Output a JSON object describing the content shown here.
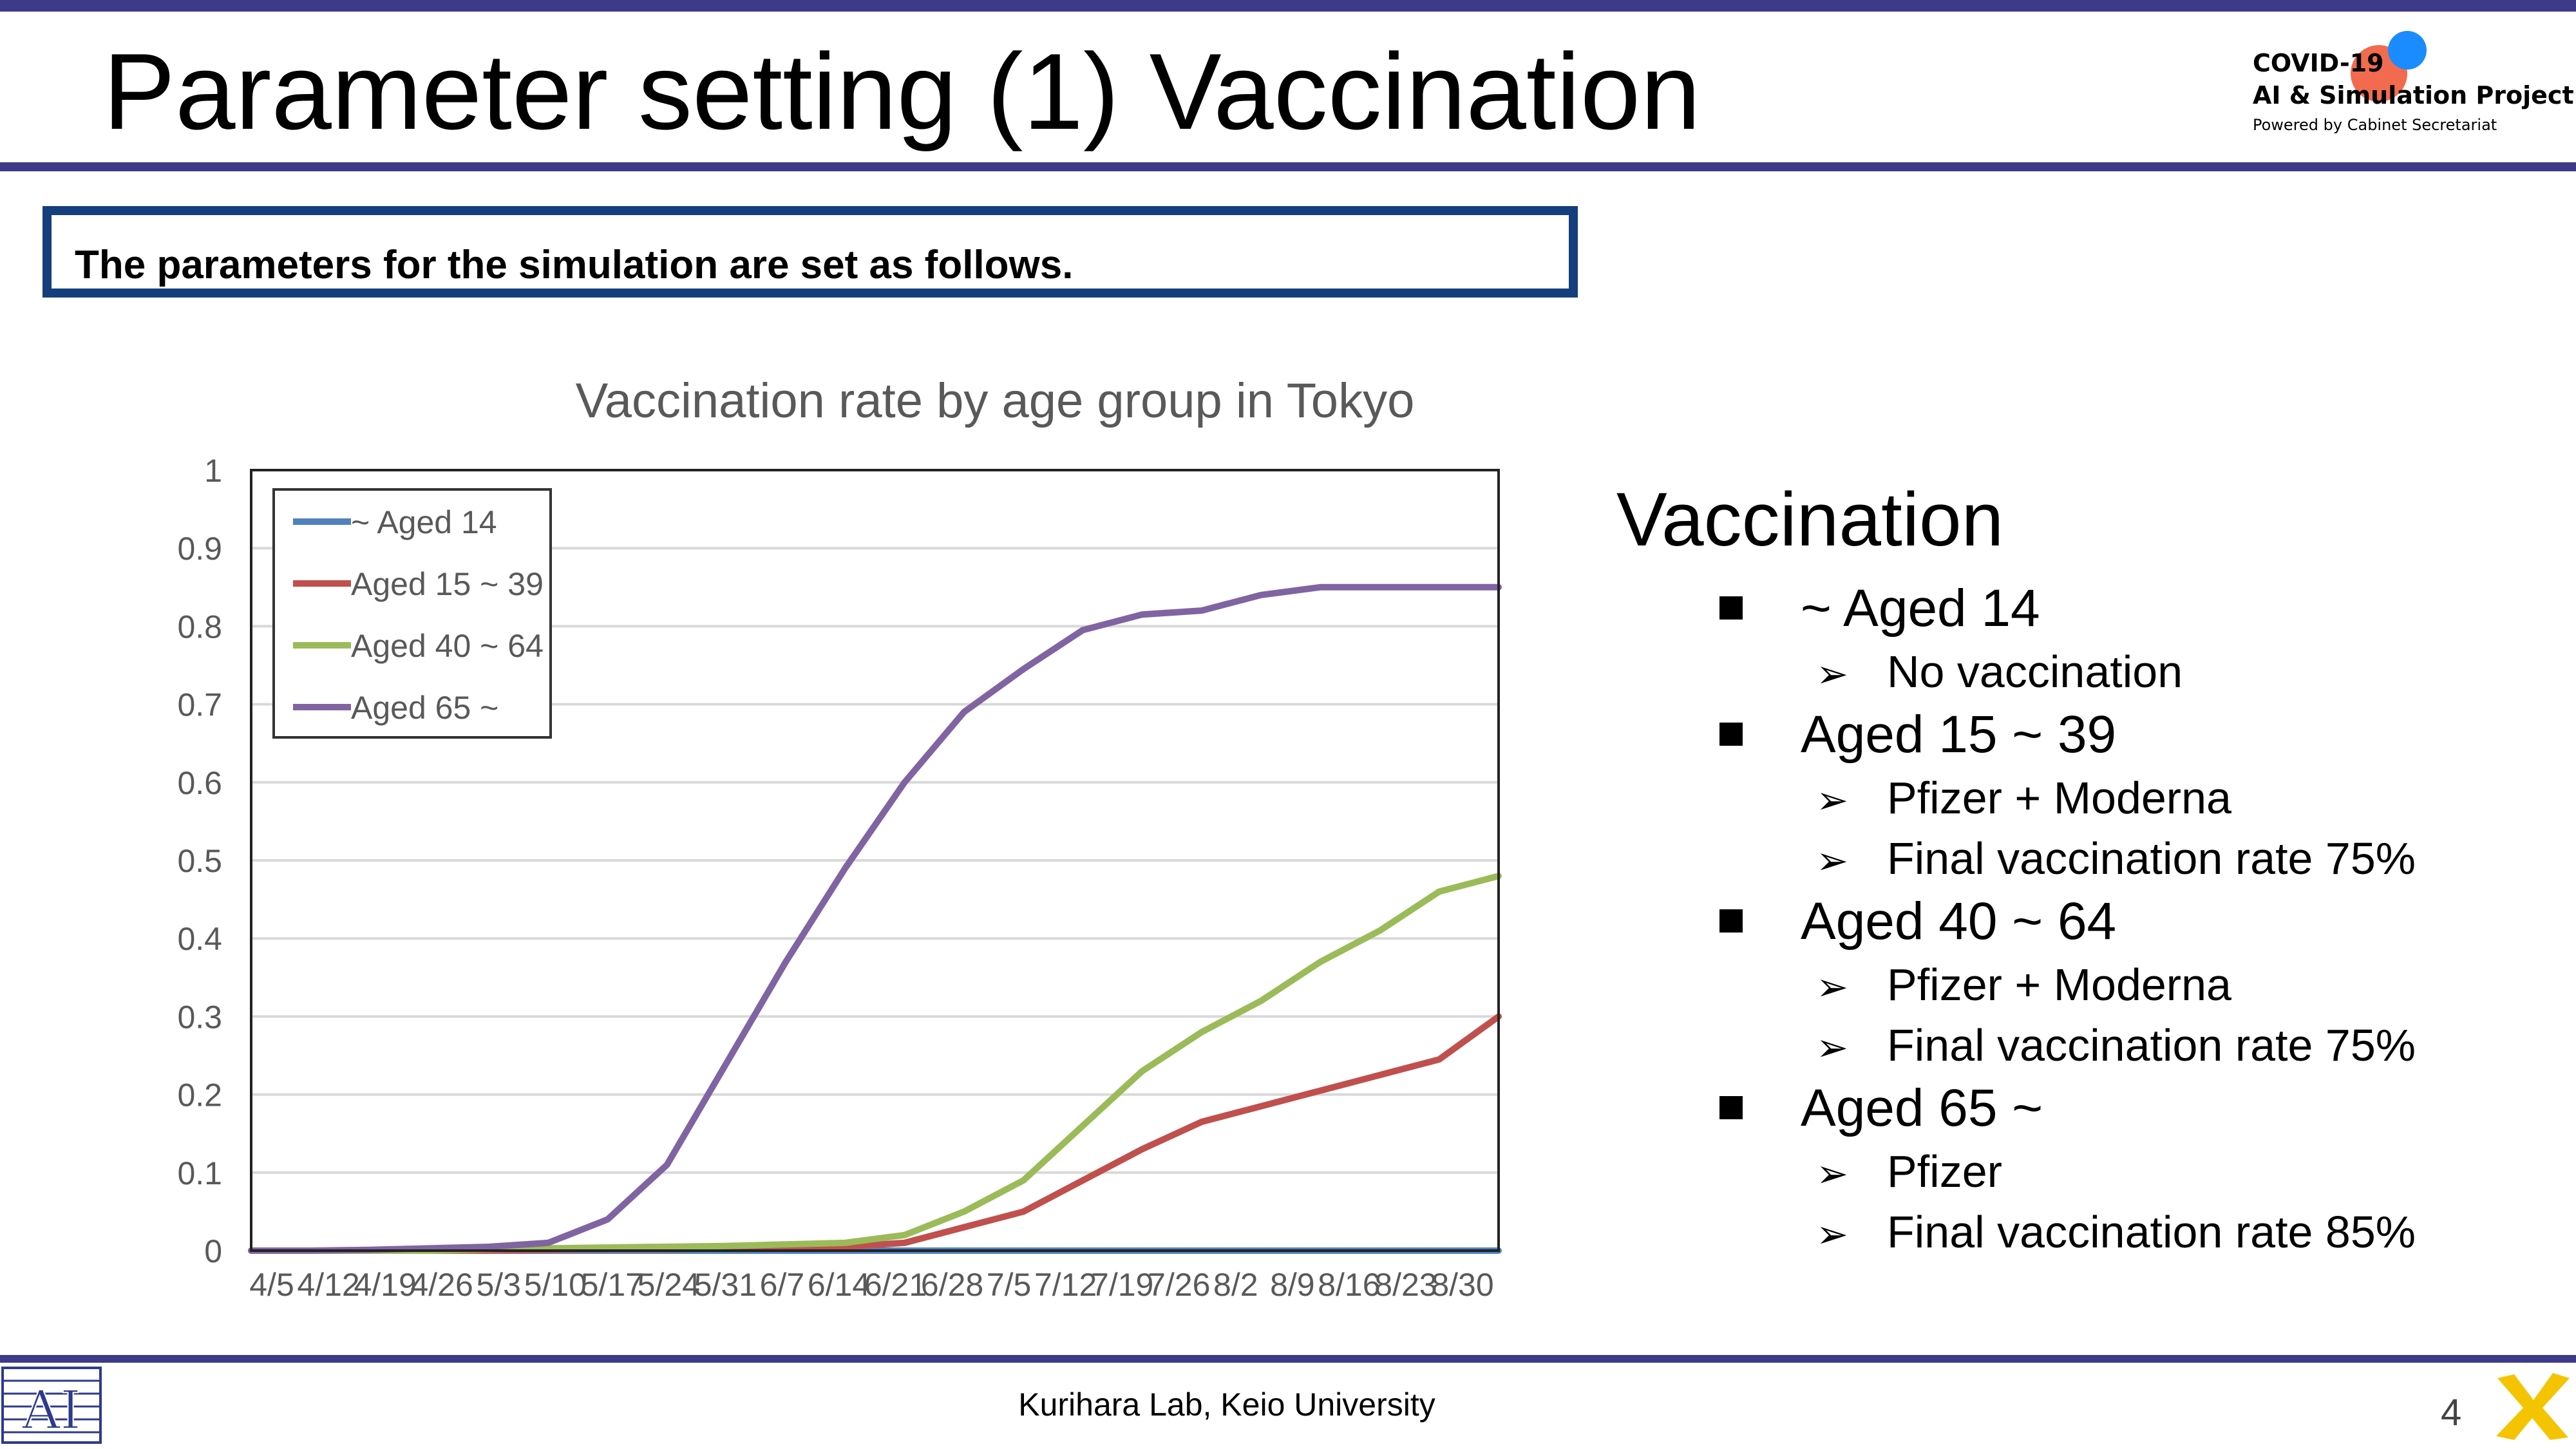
{
  "header": {
    "title": "Parameter setting (1) Vaccination",
    "logo": {
      "line1": "COVID-19",
      "line2": "AI & Simulation Project",
      "line3": "Powered by Cabinet Secretariat"
    }
  },
  "intro": "The parameters for the simulation are set as follows.",
  "colors": {
    "bar": "#3d3a8a",
    "box_border": "#143e7c",
    "aged14": "#4f81bd",
    "aged15_39": "#c0504d",
    "aged40_64": "#9bbb59",
    "aged65": "#8064a2"
  },
  "chart_data": {
    "type": "line",
    "title": "Vaccination rate by age group in Tokyo",
    "xlabel": "",
    "ylabel": "",
    "ylim": [
      0,
      1
    ],
    "yticks": [
      "0",
      "0.1",
      "0.2",
      "0.3",
      "0.4",
      "0.5",
      "0.6",
      "0.7",
      "0.8",
      "0.9",
      "1"
    ],
    "categories": [
      "4/5",
      "4/12",
      "4/19",
      "4/26",
      "5/3",
      "5/10",
      "5/17",
      "5/24",
      "5/31",
      "6/7",
      "6/14",
      "6/21",
      "6/28",
      "7/5",
      "7/12",
      "7/19",
      "7/26",
      "8/2",
      "8/9",
      "8/16",
      "8/23",
      "8/30"
    ],
    "grid": true,
    "legend_position": "top-left",
    "series": [
      {
        "name": "~ Aged 14",
        "color": "#4f81bd",
        "values": [
          0,
          0,
          0,
          0,
          0,
          0,
          0,
          0,
          0,
          0,
          0,
          0,
          0,
          0,
          0,
          0,
          0,
          0,
          0,
          0,
          0,
          0
        ]
      },
      {
        "name": "Aged 15 ~ 39",
        "color": "#c0504d",
        "values": [
          0,
          0,
          0,
          0,
          0,
          0.001,
          0.002,
          0.002,
          0.003,
          0.004,
          0.005,
          0.01,
          0.03,
          0.05,
          0.09,
          0.13,
          0.165,
          0.185,
          0.205,
          0.225,
          0.245,
          0.3
        ]
      },
      {
        "name": "Aged 40 ~ 64",
        "color": "#9bbb59",
        "values": [
          0,
          0,
          0,
          0,
          0.002,
          0.003,
          0.004,
          0.005,
          0.006,
          0.008,
          0.01,
          0.02,
          0.05,
          0.09,
          0.16,
          0.23,
          0.28,
          0.32,
          0.37,
          0.41,
          0.46,
          0.48
        ]
      },
      {
        "name": "Aged 65 ~",
        "color": "#8064a2",
        "values": [
          0,
          0,
          0.001,
          0.003,
          0.005,
          0.01,
          0.04,
          0.11,
          0.24,
          0.37,
          0.49,
          0.6,
          0.69,
          0.745,
          0.795,
          0.815,
          0.82,
          0.84,
          0.85,
          0.85,
          0.85,
          0.85
        ]
      }
    ]
  },
  "right_panel": {
    "heading": "Vaccination",
    "groups": [
      {
        "label": "~ Aged 14",
        "items": [
          "No vaccination"
        ]
      },
      {
        "label": "Aged 15 ~ 39",
        "items": [
          "Pfizer + Moderna",
          "Final vaccination rate 75%"
        ]
      },
      {
        "label": "Aged 40 ~ 64",
        "items": [
          "Pfizer + Moderna",
          "Final vaccination rate 75%"
        ]
      },
      {
        "label": "Aged 65 ~",
        "items": [
          "Pfizer",
          "Final vaccination rate 85%"
        ]
      }
    ],
    "arrow_glyph": "➢"
  },
  "footer": {
    "text": "Kurihara Lab, Keio University",
    "page_number": "4"
  }
}
